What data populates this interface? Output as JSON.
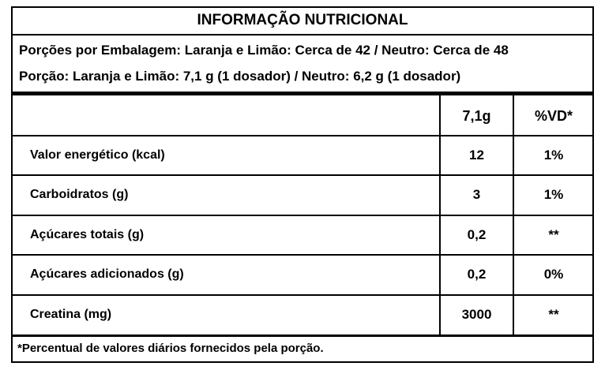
{
  "title": "INFORMAÇÃO NUTRICIONAL",
  "portions": [
    "Porções por Embalagem: Laranja e Limão: Cerca de 42 / Neutro: Cerca de 48",
    "Porção: Laranja e Limão: 7,1 g (1 dosador) / Neutro: 6,2 g (1 dosador)"
  ],
  "table": {
    "header": [
      "7,1g",
      "%VD*"
    ],
    "rows": [
      [
        "Valor energético (kcal)",
        "12",
        "1%"
      ],
      [
        "Carboidratos (g)",
        "3",
        "1%"
      ],
      [
        "Açúcares totais (g)",
        "0,2",
        "**"
      ],
      [
        "Açúcares adicionados (g)",
        "0,2",
        "0%"
      ],
      [
        "Creatina (mg)",
        "3000",
        "**"
      ]
    ]
  },
  "footnote": "*Percentual de valores diários fornecidos pela porção."
}
